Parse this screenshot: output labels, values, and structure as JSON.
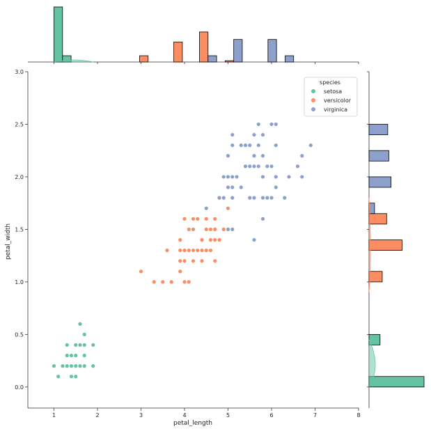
{
  "chart_data": {
    "type": "scatter",
    "title": "",
    "xlabel": "petal_length",
    "ylabel": "petal_width",
    "xlim": [
      0.4,
      8.0
    ],
    "ylim": [
      -0.2,
      3.0
    ],
    "xticks": [
      "1",
      "2",
      "3",
      "4",
      "5",
      "6",
      "7",
      "8"
    ],
    "yticks": [
      "0.0",
      "0.5",
      "1.0",
      "1.5",
      "2.0",
      "2.5",
      "3.0"
    ],
    "legend": {
      "title": "species",
      "placement": "top-right",
      "entries": [
        "setosa",
        "versicolor",
        "virginica"
      ]
    },
    "colors": {
      "setosa": "#66c2a5",
      "versicolor": "#fc8d62",
      "virginica": "#8da0cb",
      "axis": "#333333",
      "edge": "#000000"
    },
    "series": [
      {
        "name": "setosa",
        "points": [
          [
            1.0,
            0.2
          ],
          [
            1.1,
            0.1
          ],
          [
            1.2,
            0.2
          ],
          [
            1.3,
            0.2
          ],
          [
            1.4,
            0.2
          ],
          [
            1.5,
            0.2
          ],
          [
            1.6,
            0.2
          ],
          [
            1.7,
            0.2
          ],
          [
            1.9,
            0.2
          ],
          [
            1.3,
            0.3
          ],
          [
            1.4,
            0.3
          ],
          [
            1.5,
            0.3
          ],
          [
            1.7,
            0.3
          ],
          [
            1.3,
            0.4
          ],
          [
            1.5,
            0.4
          ],
          [
            1.6,
            0.4
          ],
          [
            1.7,
            0.4
          ],
          [
            1.9,
            0.4
          ],
          [
            1.7,
            0.5
          ],
          [
            1.6,
            0.6
          ],
          [
            1.4,
            0.1
          ],
          [
            1.5,
            0.1
          ]
        ]
      },
      {
        "name": "versicolor",
        "points": [
          [
            3.0,
            1.1
          ],
          [
            3.3,
            1.0
          ],
          [
            3.5,
            1.0
          ],
          [
            3.7,
            1.0
          ],
          [
            3.9,
            1.1
          ],
          [
            4.0,
            1.0
          ],
          [
            4.1,
            1.0
          ],
          [
            3.9,
            1.2
          ],
          [
            4.0,
            1.2
          ],
          [
            4.2,
            1.2
          ],
          [
            4.4,
            1.2
          ],
          [
            4.7,
            1.2
          ],
          [
            3.6,
            1.3
          ],
          [
            3.9,
            1.3
          ],
          [
            4.0,
            1.3
          ],
          [
            4.1,
            1.3
          ],
          [
            4.2,
            1.3
          ],
          [
            4.3,
            1.3
          ],
          [
            4.4,
            1.3
          ],
          [
            4.5,
            1.3
          ],
          [
            4.6,
            1.3
          ],
          [
            4.0,
            1.3
          ],
          [
            3.9,
            1.4
          ],
          [
            4.4,
            1.4
          ],
          [
            4.6,
            1.4
          ],
          [
            4.7,
            1.4
          ],
          [
            4.8,
            1.4
          ],
          [
            4.1,
            1.5
          ],
          [
            4.2,
            1.5
          ],
          [
            4.5,
            1.5
          ],
          [
            4.6,
            1.5
          ],
          [
            4.7,
            1.5
          ],
          [
            4.9,
            1.5
          ],
          [
            4.5,
            1.6
          ],
          [
            4.7,
            1.6
          ],
          [
            4.2,
            1.6
          ],
          [
            4.0,
            1.6
          ],
          [
            4.3,
            1.6
          ],
          [
            5.0,
            1.7
          ],
          [
            4.8,
            1.8
          ]
        ]
      },
      {
        "name": "virginica",
        "points": [
          [
            4.5,
            1.7
          ],
          [
            5.1,
            1.5
          ],
          [
            5.0,
            1.5
          ],
          [
            5.6,
            1.4
          ],
          [
            5.8,
            1.6
          ],
          [
            4.8,
            1.8
          ],
          [
            4.9,
            1.8
          ],
          [
            5.1,
            1.8
          ],
          [
            5.5,
            1.8
          ],
          [
            5.6,
            1.8
          ],
          [
            5.8,
            1.8
          ],
          [
            6.0,
            1.8
          ],
          [
            6.3,
            1.8
          ],
          [
            5.0,
            1.9
          ],
          [
            5.1,
            1.9
          ],
          [
            5.3,
            1.9
          ],
          [
            5.0,
            2.0
          ],
          [
            5.1,
            2.0
          ],
          [
            5.2,
            2.0
          ],
          [
            6.1,
            1.9
          ],
          [
            5.9,
            2.1
          ],
          [
            5.5,
            2.1
          ],
          [
            5.7,
            2.1
          ],
          [
            6.6,
            2.1
          ],
          [
            5.6,
            2.2
          ],
          [
            5.8,
            2.2
          ],
          [
            6.7,
            2.2
          ],
          [
            5.1,
            2.3
          ],
          [
            5.3,
            2.3
          ],
          [
            5.4,
            2.3
          ],
          [
            5.5,
            2.3
          ],
          [
            5.7,
            2.3
          ],
          [
            6.1,
            2.3
          ],
          [
            6.9,
            2.3
          ],
          [
            5.1,
            2.4
          ],
          [
            5.6,
            2.4
          ],
          [
            5.7,
            2.5
          ],
          [
            6.0,
            2.5
          ],
          [
            6.1,
            2.5
          ],
          [
            4.9,
            2.0
          ],
          [
            5.8,
            2.0
          ],
          [
            6.1,
            2.0
          ],
          [
            6.4,
            2.0
          ],
          [
            6.7,
            2.0
          ],
          [
            5.4,
            2.1
          ],
          [
            5.0,
            2.2
          ],
          [
            6.0,
            2.1
          ],
          [
            5.9,
            1.8
          ],
          [
            5.8,
            2.4
          ],
          [
            5.6,
            2.1
          ]
        ]
      }
    ],
    "top_histogram": {
      "bin_start": 1.0,
      "bin_width": 0.1967,
      "bins": [
        {
          "species": "setosa",
          "bin": 0,
          "count": 44
        },
        {
          "species": "setosa",
          "bin": 1,
          "count": 5
        },
        {
          "species": "versicolor",
          "bin": 10,
          "count": 5
        },
        {
          "species": "versicolor",
          "bin": 14,
          "count": 16
        },
        {
          "species": "versicolor",
          "bin": 17,
          "count": 24
        },
        {
          "species": "virginica",
          "bin": 18,
          "count": 5
        },
        {
          "species": "versicolor",
          "bin": 20,
          "count": 1
        },
        {
          "species": "virginica",
          "bin": 21,
          "count": 18
        },
        {
          "species": "virginica",
          "bin": 25,
          "count": 18
        },
        {
          "species": "virginica",
          "bin": 27,
          "count": 5
        }
      ]
    },
    "right_histogram": {
      "bins": [
        {
          "species": "setosa",
          "y0": 0.0,
          "y1": 0.1,
          "count": 50
        },
        {
          "species": "setosa",
          "y0": 0.4,
          "y1": 0.5,
          "count": 10
        },
        {
          "species": "versicolor",
          "y0": 1.0,
          "y1": 1.1,
          "count": 12
        },
        {
          "species": "versicolor",
          "y0": 1.3,
          "y1": 1.4,
          "count": 30
        },
        {
          "species": "versicolor",
          "y0": 1.55,
          "y1": 1.65,
          "count": 16
        },
        {
          "species": "virginica",
          "y0": 1.65,
          "y1": 1.75,
          "count": 5
        },
        {
          "species": "virginica",
          "y0": 1.9,
          "y1": 2.0,
          "count": 20
        },
        {
          "species": "virginica",
          "y0": 2.15,
          "y1": 2.25,
          "count": 18
        },
        {
          "species": "virginica",
          "y0": 2.4,
          "y1": 2.5,
          "count": 17
        }
      ]
    }
  }
}
